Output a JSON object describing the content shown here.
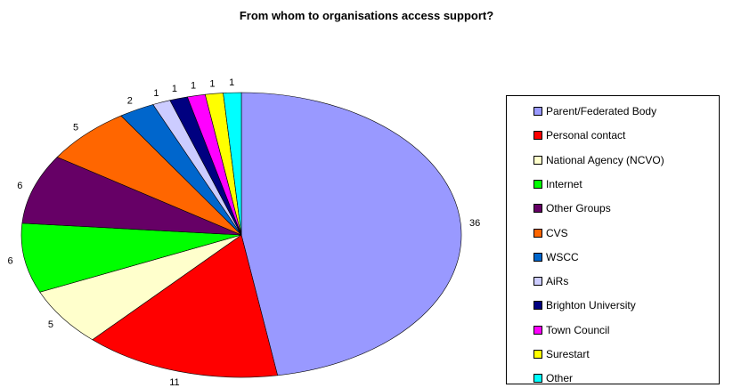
{
  "chart_data": {
    "type": "pie",
    "title": "From whom to organisations access support?",
    "legend_position": "right",
    "slices": [
      {
        "label": "Parent/Federated Body",
        "value": 36,
        "value_label": "36",
        "color": "#9999FF"
      },
      {
        "label": "Personal contact",
        "value": 11,
        "value_label": "11",
        "color": "#FF0000"
      },
      {
        "label": "National Agency (NCVO)",
        "value": 5,
        "value_label": "5",
        "color": "#FFFFCC"
      },
      {
        "label": "Internet",
        "value": 6,
        "value_label": "6",
        "color": "#00FF00"
      },
      {
        "label": "Other Groups",
        "value": 6,
        "value_label": "6",
        "color": "#660066"
      },
      {
        "label": "CVS",
        "value": 5,
        "value_label": "5",
        "color": "#FF6600"
      },
      {
        "label": "WSCC",
        "value": 2,
        "value_label": "2",
        "color": "#0066CC"
      },
      {
        "label": "AiRs",
        "value": 1,
        "value_label": "1",
        "color": "#CCCCFF"
      },
      {
        "label": "Brighton University",
        "value": 1,
        "value_label": "1",
        "color": "#000080"
      },
      {
        "label": "Town Council",
        "value": 1,
        "value_label": "1",
        "color": "#FF00FF"
      },
      {
        "label": "Surestart",
        "value": 1,
        "value_label": "1",
        "color": "#FFFF00"
      },
      {
        "label": "Other",
        "value": 1,
        "value_label": "1",
        "color": "#00FFFF"
      }
    ]
  }
}
